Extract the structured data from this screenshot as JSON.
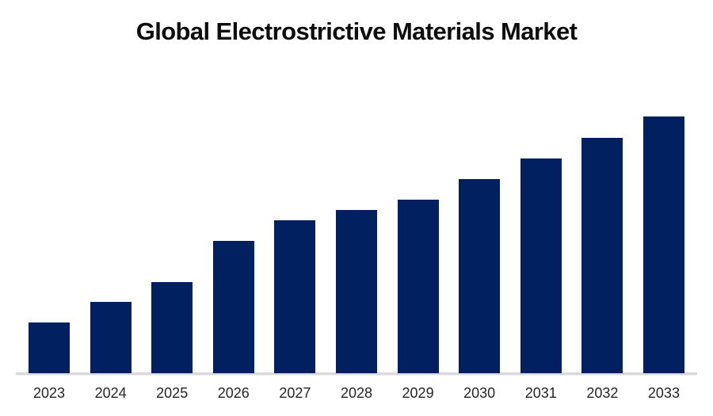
{
  "chart_data": {
    "type": "bar",
    "title": "Global Electrostrictive Materials Market",
    "xlabel": "",
    "ylabel": "",
    "categories": [
      "2023",
      "2024",
      "2025",
      "2026",
      "2027",
      "2028",
      "2029",
      "2030",
      "2031",
      "2032",
      "2033"
    ],
    "values": [
      19.8,
      27.8,
      35.5,
      51.5,
      59.6,
      63.6,
      67.6,
      75.6,
      83.6,
      91.7,
      100
    ],
    "values_note": "relative bar heights in % of tallest bar (chart shows no y-axis or data labels)",
    "ylim": [
      0,
      100
    ],
    "grid": false,
    "legend_position": "none",
    "bar_color": "#002060",
    "axis_line_color": "#d9d9d9",
    "title_color": "#0d0d0d",
    "tick_label_color": "#262626"
  }
}
